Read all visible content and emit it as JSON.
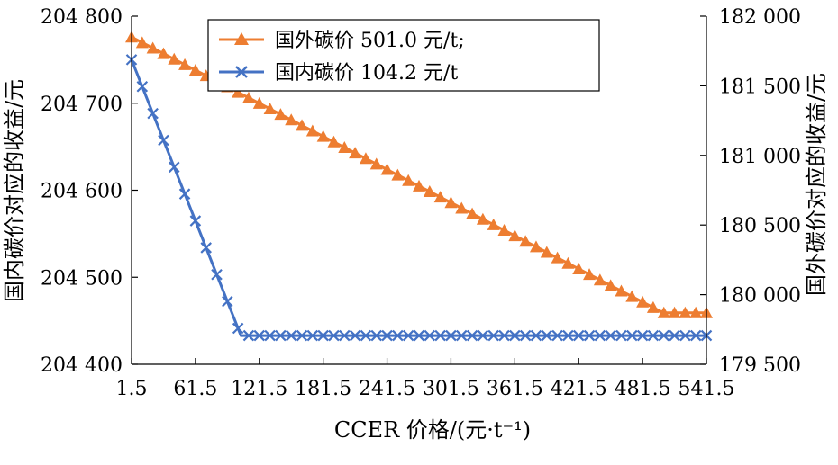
{
  "chart_data": {
    "type": "line",
    "xlabel": "CCER 价格/(元·t⁻¹)",
    "ylabel_left": "国内碳价对应的收益/元",
    "ylabel_right": "国外碳价对应的收益/元",
    "x_ticks": [
      "1.5",
      "61.5",
      "121.5",
      "181.5",
      "241.5",
      "301.5",
      "361.5",
      "421.5",
      "481.5",
      "541.5"
    ],
    "x_tick_values": [
      1.5,
      61.5,
      121.5,
      181.5,
      241.5,
      301.5,
      361.5,
      421.5,
      481.5,
      541.5
    ],
    "xlim": [
      1.5,
      541.5
    ],
    "y_left_ticks": [
      "204 400",
      "204 500",
      "204 600",
      "204 700",
      "204 800"
    ],
    "y_left_tick_values": [
      204400,
      204500,
      204600,
      204700,
      204800
    ],
    "ylim_left": [
      204400,
      204800
    ],
    "y_right_ticks": [
      "179 500",
      "180 000",
      "180 500",
      "181 000",
      "181 500",
      "182 000"
    ],
    "y_right_tick_values": [
      179500,
      180000,
      180500,
      181000,
      181500,
      182000
    ],
    "ylim_right": [
      179500,
      182000
    ],
    "legend_position": "top-center",
    "series": [
      {
        "name": "国外碳价 501.0 元/t;",
        "axis": "right",
        "color": "#ED7D31",
        "marker": "triangle",
        "x": [
          1.5,
          501.0,
          541.5
        ],
        "y": [
          181850,
          179870,
          179870
        ]
      },
      {
        "name": "国内碳价 104.2 元/t",
        "axis": "left",
        "color": "#4472C4",
        "marker": "x",
        "x": [
          1.5,
          104.2,
          541.5
        ],
        "y": [
          204750,
          204433,
          204433
        ]
      }
    ]
  }
}
